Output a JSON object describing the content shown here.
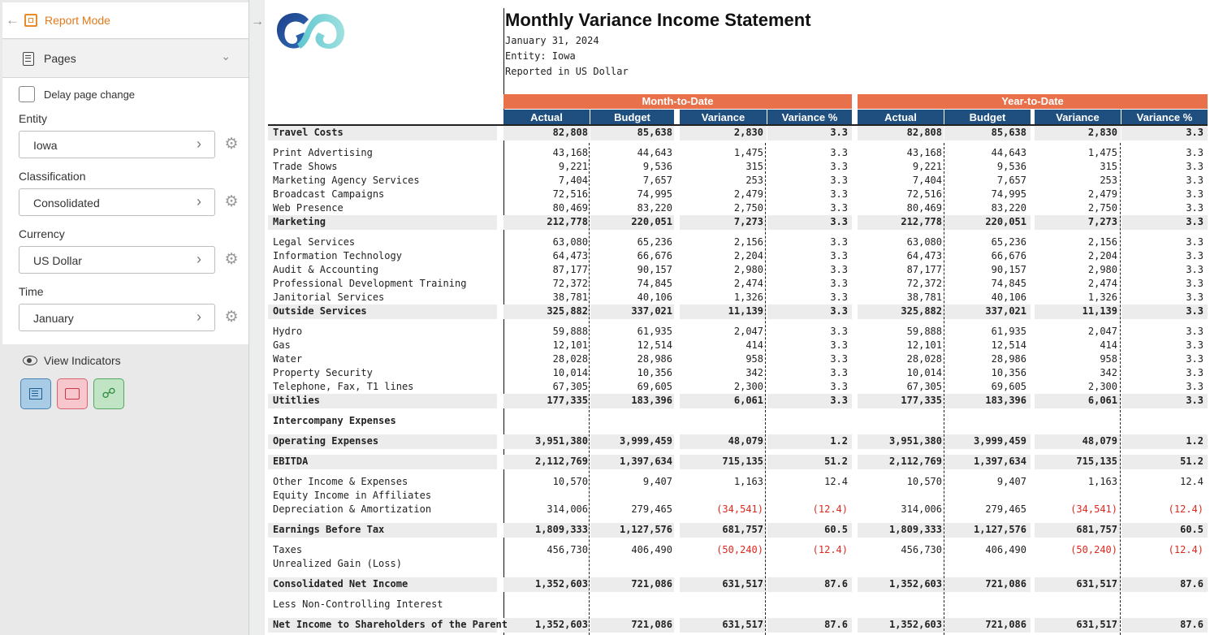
{
  "sidebar": {
    "report_mode_label": "Report Mode",
    "pages_label": "Pages",
    "delay_label": "Delay page change",
    "filters": [
      {
        "label": "Entity",
        "value": "Iowa"
      },
      {
        "label": "Classification",
        "value": "Consolidated"
      },
      {
        "label": "Currency",
        "value": "US Dollar"
      },
      {
        "label": "Time",
        "value": "January"
      }
    ],
    "view_indicators_label": "View Indicators"
  },
  "report": {
    "title": "Monthly Variance Income Statement",
    "date": "January 31, 2024",
    "entity": "Entity: Iowa",
    "currency_note": "Reported in US Dollar",
    "group_mtd": "Month-to-Date",
    "group_ytd": "Year-to-Date",
    "columns": [
      "Actual",
      "Budget",
      "Variance",
      "Variance %",
      "Actual",
      "Budget",
      "Variance",
      "Variance %"
    ],
    "accent_color": "#e8714b",
    "header_color": "#1e4f7e",
    "negative_color": "#e0271d",
    "rows": [
      {
        "label": "Travel Costs",
        "bold": true,
        "vals": [
          "82,808",
          "85,638",
          "2,830",
          "3.3",
          "82,808",
          "85,638",
          "2,830",
          "3.3"
        ]
      },
      {
        "label": "Print Advertising",
        "vals": [
          "43,168",
          "44,643",
          "1,475",
          "3.3",
          "43,168",
          "44,643",
          "1,475",
          "3.3"
        ]
      },
      {
        "label": "Trade Shows",
        "vals": [
          "9,221",
          "9,536",
          "315",
          "3.3",
          "9,221",
          "9,536",
          "315",
          "3.3"
        ]
      },
      {
        "label": "Marketing Agency Services",
        "vals": [
          "7,404",
          "7,657",
          "253",
          "3.3",
          "7,404",
          "7,657",
          "253",
          "3.3"
        ]
      },
      {
        "label": "Broadcast Campaigns",
        "vals": [
          "72,516",
          "74,995",
          "2,479",
          "3.3",
          "72,516",
          "74,995",
          "2,479",
          "3.3"
        ]
      },
      {
        "label": "Web Presence",
        "vals": [
          "80,469",
          "83,220",
          "2,750",
          "3.3",
          "80,469",
          "83,220",
          "2,750",
          "3.3"
        ]
      },
      {
        "label": "Marketing",
        "bold": true,
        "vals": [
          "212,778",
          "220,051",
          "7,273",
          "3.3",
          "212,778",
          "220,051",
          "7,273",
          "3.3"
        ]
      },
      {
        "label": "Legal Services",
        "vals": [
          "63,080",
          "65,236",
          "2,156",
          "3.3",
          "63,080",
          "65,236",
          "2,156",
          "3.3"
        ]
      },
      {
        "label": "Information Technology",
        "vals": [
          "64,473",
          "66,676",
          "2,204",
          "3.3",
          "64,473",
          "66,676",
          "2,204",
          "3.3"
        ]
      },
      {
        "label": "Audit & Accounting",
        "vals": [
          "87,177",
          "90,157",
          "2,980",
          "3.3",
          "87,177",
          "90,157",
          "2,980",
          "3.3"
        ]
      },
      {
        "label": "Professional Development Training",
        "vals": [
          "72,372",
          "74,845",
          "2,474",
          "3.3",
          "72,372",
          "74,845",
          "2,474",
          "3.3"
        ]
      },
      {
        "label": "Janitorial Services",
        "vals": [
          "38,781",
          "40,106",
          "1,326",
          "3.3",
          "38,781",
          "40,106",
          "1,326",
          "3.3"
        ]
      },
      {
        "label": "Outside Services",
        "bold": true,
        "vals": [
          "325,882",
          "337,021",
          "11,139",
          "3.3",
          "325,882",
          "337,021",
          "11,139",
          "3.3"
        ]
      },
      {
        "label": "Hydro",
        "vals": [
          "59,888",
          "61,935",
          "2,047",
          "3.3",
          "59,888",
          "61,935",
          "2,047",
          "3.3"
        ]
      },
      {
        "label": "Gas",
        "vals": [
          "12,101",
          "12,514",
          "414",
          "3.3",
          "12,101",
          "12,514",
          "414",
          "3.3"
        ]
      },
      {
        "label": "Water",
        "vals": [
          "28,028",
          "28,986",
          "958",
          "3.3",
          "28,028",
          "28,986",
          "958",
          "3.3"
        ]
      },
      {
        "label": "Property Security",
        "vals": [
          "10,014",
          "10,356",
          "342",
          "3.3",
          "10,014",
          "10,356",
          "342",
          "3.3"
        ]
      },
      {
        "label": "Telephone, Fax, T1 lines",
        "vals": [
          "67,305",
          "69,605",
          "2,300",
          "3.3",
          "67,305",
          "69,605",
          "2,300",
          "3.3"
        ]
      },
      {
        "label": "Utitlies",
        "bold": true,
        "vals": [
          "177,335",
          "183,396",
          "6,061",
          "3.3",
          "177,335",
          "183,396",
          "6,061",
          "3.3"
        ]
      },
      {
        "label": "Intercompany Expenses",
        "bold": true,
        "noshade": true,
        "vals": [
          "",
          "",
          "",
          "",
          "",
          "",
          "",
          ""
        ]
      },
      {
        "label": "Operating Expenses",
        "bold": true,
        "vals": [
          "3,951,380",
          "3,999,459",
          "48,079",
          "1.2",
          "3,951,380",
          "3,999,459",
          "48,079",
          "1.2"
        ]
      },
      {
        "label": "EBITDA",
        "bold": true,
        "vals": [
          "2,112,769",
          "1,397,634",
          "715,135",
          "51.2",
          "2,112,769",
          "1,397,634",
          "715,135",
          "51.2"
        ]
      },
      {
        "label": "Other Income & Expenses",
        "vals": [
          "10,570",
          "9,407",
          "1,163",
          "12.4",
          "10,570",
          "9,407",
          "1,163",
          "12.4"
        ]
      },
      {
        "label": "Equity Income in Affiliates",
        "vals": [
          "",
          "",
          "",
          "",
          "",
          "",
          "",
          ""
        ]
      },
      {
        "label": "Depreciation & Amortization",
        "vals": [
          "314,006",
          "279,465",
          "(34,541)",
          "(12.4)",
          "314,006",
          "279,465",
          "(34,541)",
          "(12.4)"
        ]
      },
      {
        "label": "Earnings Before Tax",
        "bold": true,
        "vals": [
          "1,809,333",
          "1,127,576",
          "681,757",
          "60.5",
          "1,809,333",
          "1,127,576",
          "681,757",
          "60.5"
        ]
      },
      {
        "label": "Taxes",
        "vals": [
          "456,730",
          "406,490",
          "(50,240)",
          "(12.4)",
          "456,730",
          "406,490",
          "(50,240)",
          "(12.4)"
        ]
      },
      {
        "label": "Unrealized Gain (Loss)",
        "vals": [
          "",
          "",
          "",
          "",
          "",
          "",
          "",
          ""
        ]
      },
      {
        "label": "Consolidated Net Income",
        "bold": true,
        "vals": [
          "1,352,603",
          "721,086",
          "631,517",
          "87.6",
          "1,352,603",
          "721,086",
          "631,517",
          "87.6"
        ]
      },
      {
        "label": "Less Non-Controlling Interest",
        "vals": [
          "",
          "",
          "",
          "",
          "",
          "",
          "",
          ""
        ]
      },
      {
        "label": "Net Income to Shareholders of the Parent",
        "bold": true,
        "vals": [
          "1,352,603",
          "721,086",
          "631,517",
          "87.6",
          "1,352,603",
          "721,086",
          "631,517",
          "87.6"
        ]
      }
    ]
  }
}
